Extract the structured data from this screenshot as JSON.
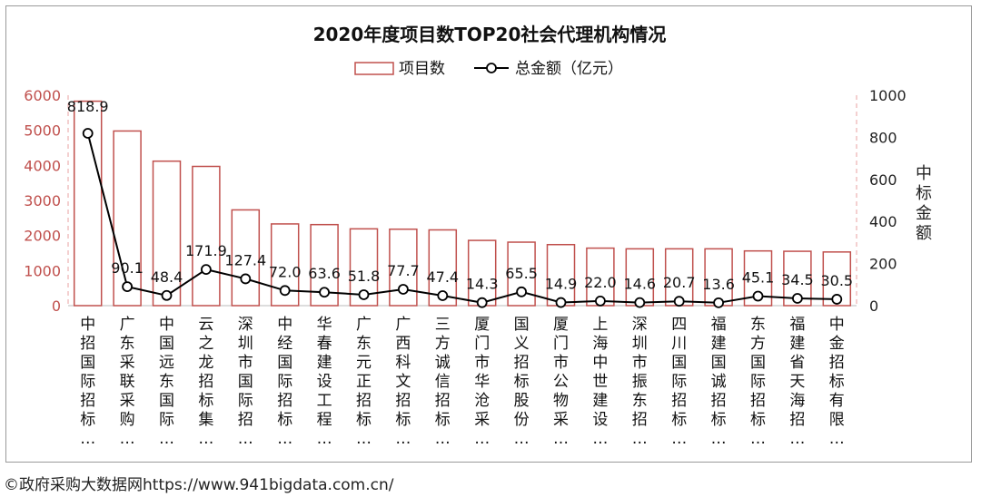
{
  "chart_data": {
    "type": "bar",
    "title": "2020年度项目数TOP20社会代理机构情况",
    "legend_position": "top-center",
    "categories": [
      "中招国际招标…",
      "广东采联采购…",
      "中国远东国际…",
      "云之龙招标集…",
      "深圳市国际招…",
      "中经国际招标…",
      "华春建设工程…",
      "广东元正招标…",
      "广西科文招标…",
      "三方诚信招标…",
      "厦门市华沧采…",
      "国义招标股份…",
      "厦门市公物采…",
      "上海中世建设…",
      "深圳市振东招…",
      "四川国际招标…",
      "福建国诚招标…",
      "东方国际招标…",
      "福建省天海招…",
      "中金招标有限…"
    ],
    "series": [
      {
        "name": "项目数",
        "kind": "bar",
        "axis": "left",
        "values": [
          5830,
          4980,
          4120,
          3970,
          2730,
          2330,
          2310,
          2190,
          2180,
          2160,
          1860,
          1810,
          1740,
          1640,
          1620,
          1620,
          1620,
          1560,
          1550,
          1530
        ]
      },
      {
        "name": "总金额（亿元）",
        "kind": "line",
        "axis": "right",
        "values": [
          818.9,
          90.1,
          48.4,
          171.9,
          127.4,
          72.0,
          63.6,
          51.8,
          77.7,
          47.4,
          14.3,
          65.5,
          14.9,
          22.0,
          14.6,
          20.7,
          13.6,
          45.1,
          34.5,
          30.5
        ],
        "labels": [
          "818.9",
          "90.1",
          "48.4",
          "171.9",
          "127.4",
          "72.0",
          "63.6",
          "51.8",
          "77.7",
          "47.4",
          "14.3",
          "65.5",
          "14.9",
          "22.0",
          "14.6",
          "20.7",
          "13.6",
          "45.1",
          "34.5",
          "30.5"
        ]
      }
    ],
    "left_axis": {
      "ylim": [
        0,
        6000
      ],
      "ticks": [
        0,
        1000,
        2000,
        3000,
        4000,
        5000,
        6000
      ],
      "tick_labels": [
        "0",
        "1000",
        "2000",
        "3000",
        "4000",
        "5000",
        "6000"
      ]
    },
    "right_axis": {
      "ylim": [
        0,
        1000
      ],
      "ticks": [
        0,
        200,
        400,
        600,
        800,
        1000
      ],
      "tick_labels": [
        "0",
        "200",
        "400",
        "600",
        "800",
        "1000"
      ],
      "label": "中标金额"
    },
    "grid": false,
    "colors": {
      "bar_stroke": "#c0504d",
      "left_axis_text": "#c0504d",
      "right_axis_text": "#222222",
      "line": "#000000",
      "axis_line": "#e8a0a0"
    }
  },
  "footer": {
    "credit": "©政府采购大数据网https://www.941bigdata.com.cn/"
  }
}
